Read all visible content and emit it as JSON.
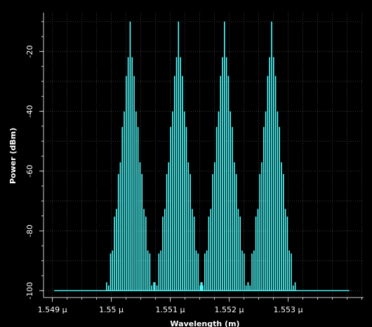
{
  "chart_data": {
    "type": "line",
    "title": "",
    "xlabel": "Wavelength (m)",
    "ylabel": "Power (dBm)",
    "xlim": [
      1.54885,
      1.55428
    ],
    "ylim": [
      -102.3,
      -7
    ],
    "x_ticks": [
      {
        "value": 1.549,
        "label": "1.549 µ"
      },
      {
        "value": 1.55,
        "label": "1.55 µ"
      },
      {
        "value": 1.551,
        "label": "1.551 µ"
      },
      {
        "value": 1.552,
        "label": "1.552 µ"
      },
      {
        "value": 1.553,
        "label": "1.553 µ"
      }
    ],
    "y_ticks": [
      {
        "value": -20,
        "label": "-20"
      },
      {
        "value": -40,
        "label": "-40"
      },
      {
        "value": -60,
        "label": "-60"
      },
      {
        "value": -80,
        "label": "-80"
      },
      {
        "value": -100,
        "label": "-100"
      }
    ],
    "grid": true,
    "noise_floor_dbm": -100,
    "baseline_x_range": [
      1.54903,
      1.55404
    ],
    "series": [
      {
        "color": "#4fffff",
        "peaks": [
          {
            "center": 1.55032,
            "spacing": 3.33e-05,
            "peak_dbm": -10,
            "half_width": 0.00042
          },
          {
            "center": 1.55114,
            "spacing": 3.33e-05,
            "peak_dbm": -10,
            "half_width": 0.00042
          },
          {
            "center": 1.55192,
            "spacing": 3.33e-05,
            "peak_dbm": -10,
            "half_width": 0.00042
          },
          {
            "center": 1.55272,
            "spacing": 3.33e-05,
            "peak_dbm": -10,
            "half_width": 0.00042
          }
        ]
      }
    ]
  }
}
